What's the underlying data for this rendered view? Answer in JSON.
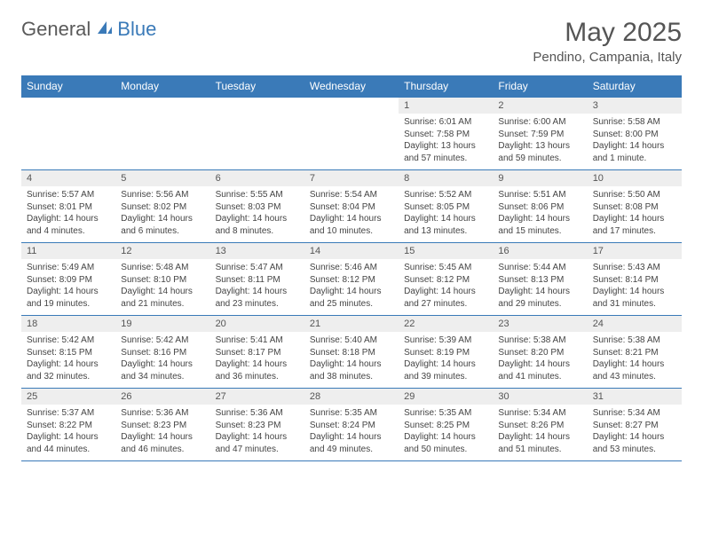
{
  "logo": {
    "part1": "General",
    "part2": "Blue"
  },
  "title": "May 2025",
  "location": "Pendino, Campania, Italy",
  "colors": {
    "accent": "#3a7ab8",
    "header_text": "#ffffff",
    "daynum_bg": "#eeeeee",
    "body_text": "#444444",
    "title_text": "#555555"
  },
  "days_of_week": [
    "Sunday",
    "Monday",
    "Tuesday",
    "Wednesday",
    "Thursday",
    "Friday",
    "Saturday"
  ],
  "weeks": [
    [
      {
        "blank": true
      },
      {
        "blank": true
      },
      {
        "blank": true
      },
      {
        "blank": true
      },
      {
        "num": "1",
        "sunrise": "Sunrise: 6:01 AM",
        "sunset": "Sunset: 7:58 PM",
        "daylight": "Daylight: 13 hours and 57 minutes."
      },
      {
        "num": "2",
        "sunrise": "Sunrise: 6:00 AM",
        "sunset": "Sunset: 7:59 PM",
        "daylight": "Daylight: 13 hours and 59 minutes."
      },
      {
        "num": "3",
        "sunrise": "Sunrise: 5:58 AM",
        "sunset": "Sunset: 8:00 PM",
        "daylight": "Daylight: 14 hours and 1 minute."
      }
    ],
    [
      {
        "num": "4",
        "sunrise": "Sunrise: 5:57 AM",
        "sunset": "Sunset: 8:01 PM",
        "daylight": "Daylight: 14 hours and 4 minutes."
      },
      {
        "num": "5",
        "sunrise": "Sunrise: 5:56 AM",
        "sunset": "Sunset: 8:02 PM",
        "daylight": "Daylight: 14 hours and 6 minutes."
      },
      {
        "num": "6",
        "sunrise": "Sunrise: 5:55 AM",
        "sunset": "Sunset: 8:03 PM",
        "daylight": "Daylight: 14 hours and 8 minutes."
      },
      {
        "num": "7",
        "sunrise": "Sunrise: 5:54 AM",
        "sunset": "Sunset: 8:04 PM",
        "daylight": "Daylight: 14 hours and 10 minutes."
      },
      {
        "num": "8",
        "sunrise": "Sunrise: 5:52 AM",
        "sunset": "Sunset: 8:05 PM",
        "daylight": "Daylight: 14 hours and 13 minutes."
      },
      {
        "num": "9",
        "sunrise": "Sunrise: 5:51 AM",
        "sunset": "Sunset: 8:06 PM",
        "daylight": "Daylight: 14 hours and 15 minutes."
      },
      {
        "num": "10",
        "sunrise": "Sunrise: 5:50 AM",
        "sunset": "Sunset: 8:08 PM",
        "daylight": "Daylight: 14 hours and 17 minutes."
      }
    ],
    [
      {
        "num": "11",
        "sunrise": "Sunrise: 5:49 AM",
        "sunset": "Sunset: 8:09 PM",
        "daylight": "Daylight: 14 hours and 19 minutes."
      },
      {
        "num": "12",
        "sunrise": "Sunrise: 5:48 AM",
        "sunset": "Sunset: 8:10 PM",
        "daylight": "Daylight: 14 hours and 21 minutes."
      },
      {
        "num": "13",
        "sunrise": "Sunrise: 5:47 AM",
        "sunset": "Sunset: 8:11 PM",
        "daylight": "Daylight: 14 hours and 23 minutes."
      },
      {
        "num": "14",
        "sunrise": "Sunrise: 5:46 AM",
        "sunset": "Sunset: 8:12 PM",
        "daylight": "Daylight: 14 hours and 25 minutes."
      },
      {
        "num": "15",
        "sunrise": "Sunrise: 5:45 AM",
        "sunset": "Sunset: 8:12 PM",
        "daylight": "Daylight: 14 hours and 27 minutes."
      },
      {
        "num": "16",
        "sunrise": "Sunrise: 5:44 AM",
        "sunset": "Sunset: 8:13 PM",
        "daylight": "Daylight: 14 hours and 29 minutes."
      },
      {
        "num": "17",
        "sunrise": "Sunrise: 5:43 AM",
        "sunset": "Sunset: 8:14 PM",
        "daylight": "Daylight: 14 hours and 31 minutes."
      }
    ],
    [
      {
        "num": "18",
        "sunrise": "Sunrise: 5:42 AM",
        "sunset": "Sunset: 8:15 PM",
        "daylight": "Daylight: 14 hours and 32 minutes."
      },
      {
        "num": "19",
        "sunrise": "Sunrise: 5:42 AM",
        "sunset": "Sunset: 8:16 PM",
        "daylight": "Daylight: 14 hours and 34 minutes."
      },
      {
        "num": "20",
        "sunrise": "Sunrise: 5:41 AM",
        "sunset": "Sunset: 8:17 PM",
        "daylight": "Daylight: 14 hours and 36 minutes."
      },
      {
        "num": "21",
        "sunrise": "Sunrise: 5:40 AM",
        "sunset": "Sunset: 8:18 PM",
        "daylight": "Daylight: 14 hours and 38 minutes."
      },
      {
        "num": "22",
        "sunrise": "Sunrise: 5:39 AM",
        "sunset": "Sunset: 8:19 PM",
        "daylight": "Daylight: 14 hours and 39 minutes."
      },
      {
        "num": "23",
        "sunrise": "Sunrise: 5:38 AM",
        "sunset": "Sunset: 8:20 PM",
        "daylight": "Daylight: 14 hours and 41 minutes."
      },
      {
        "num": "24",
        "sunrise": "Sunrise: 5:38 AM",
        "sunset": "Sunset: 8:21 PM",
        "daylight": "Daylight: 14 hours and 43 minutes."
      }
    ],
    [
      {
        "num": "25",
        "sunrise": "Sunrise: 5:37 AM",
        "sunset": "Sunset: 8:22 PM",
        "daylight": "Daylight: 14 hours and 44 minutes."
      },
      {
        "num": "26",
        "sunrise": "Sunrise: 5:36 AM",
        "sunset": "Sunset: 8:23 PM",
        "daylight": "Daylight: 14 hours and 46 minutes."
      },
      {
        "num": "27",
        "sunrise": "Sunrise: 5:36 AM",
        "sunset": "Sunset: 8:23 PM",
        "daylight": "Daylight: 14 hours and 47 minutes."
      },
      {
        "num": "28",
        "sunrise": "Sunrise: 5:35 AM",
        "sunset": "Sunset: 8:24 PM",
        "daylight": "Daylight: 14 hours and 49 minutes."
      },
      {
        "num": "29",
        "sunrise": "Sunrise: 5:35 AM",
        "sunset": "Sunset: 8:25 PM",
        "daylight": "Daylight: 14 hours and 50 minutes."
      },
      {
        "num": "30",
        "sunrise": "Sunrise: 5:34 AM",
        "sunset": "Sunset: 8:26 PM",
        "daylight": "Daylight: 14 hours and 51 minutes."
      },
      {
        "num": "31",
        "sunrise": "Sunrise: 5:34 AM",
        "sunset": "Sunset: 8:27 PM",
        "daylight": "Daylight: 14 hours and 53 minutes."
      }
    ]
  ]
}
